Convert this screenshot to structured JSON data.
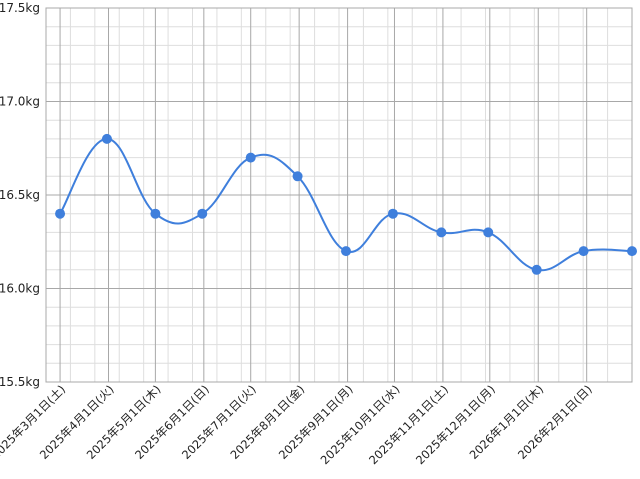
{
  "chart_data": {
    "type": "line",
    "y_unit": "kg",
    "ylim": [
      15.5,
      17.5
    ],
    "y_ticks": [
      "15.5kg",
      "16.0kg",
      "16.5kg",
      "17.0kg",
      "17.5kg"
    ],
    "x_tick_labels": [
      "2025年3月1日(土)",
      "2025年4月1日(火)",
      "2025年5月1日(木)",
      "2025年6月1日(日)",
      "2025年7月1日(火)",
      "2025年8月1日(金)",
      "2025年9月1日(月)",
      "2025年10月1日(水)",
      "2025年11月1日(土)",
      "2025年12月1日(月)",
      "2026年1月1日(木)",
      "2026年2月1日(日)"
    ],
    "grid": true,
    "legend": "none",
    "series": [
      {
        "color": "#3f7fdc",
        "points": [
          {
            "x": "2025-03-01",
            "y": 16.4
          },
          {
            "x": "2025-03-31",
            "y": 16.8
          },
          {
            "x": "2025-05-01",
            "y": 16.4
          },
          {
            "x": "2025-05-31",
            "y": 16.4
          },
          {
            "x": "2025-07-01",
            "y": 16.7
          },
          {
            "x": "2025-07-31",
            "y": 16.6
          },
          {
            "x": "2025-08-31",
            "y": 16.2
          },
          {
            "x": "2025-09-30",
            "y": 16.4
          },
          {
            "x": "2025-10-31",
            "y": 16.3
          },
          {
            "x": "2025-11-30",
            "y": 16.3
          },
          {
            "x": "2025-12-31",
            "y": 16.1
          },
          {
            "x": "2026-01-30",
            "y": 16.2
          },
          {
            "x": "2026-03-02",
            "y": 16.2
          }
        ]
      }
    ]
  }
}
